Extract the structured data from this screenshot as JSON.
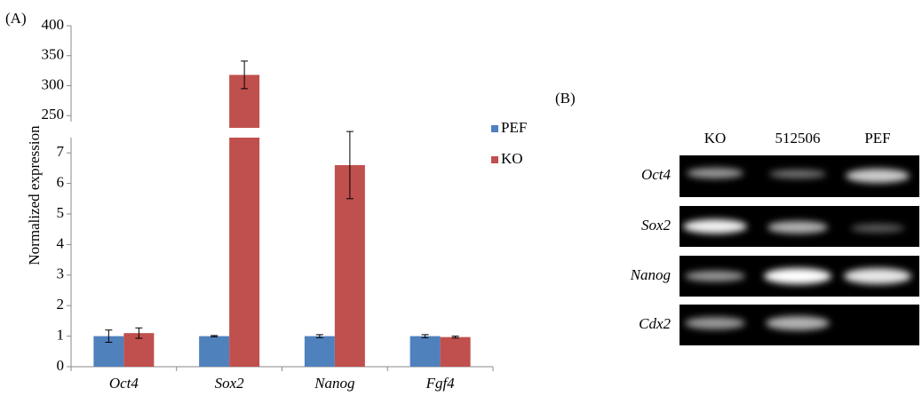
{
  "chart_data": {
    "type": "bar",
    "panel_label": "(A)",
    "y_label": "Normalized expression",
    "categories": [
      "Oct4",
      "Sox2",
      "Nanog",
      "Fgf4"
    ],
    "series": [
      {
        "name": "PEF",
        "color": "#4f81bd",
        "values": [
          1.0,
          1.0,
          1.0,
          1.0
        ],
        "errors": [
          0.2,
          0.02,
          0.05,
          0.05
        ]
      },
      {
        "name": "KO",
        "color": "#c0504d",
        "values": [
          1.1,
          318,
          6.6,
          0.97
        ],
        "errors": [
          0.17,
          23,
          1.1,
          0.03
        ]
      }
    ],
    "segments": [
      {
        "ylim": [
          0,
          7.5
        ],
        "yticks": [
          0,
          1,
          2,
          3,
          4,
          5,
          6,
          7
        ]
      },
      {
        "ylim": [
          240,
          400
        ],
        "yticks": [
          250,
          300,
          350,
          400
        ]
      }
    ],
    "legend": "right"
  },
  "gel": {
    "panel_label": "(B)",
    "lanes": [
      "KO",
      "512506",
      "PEF"
    ],
    "genes": [
      "Oct4",
      "Sox2",
      "Nanog",
      "Cdx2"
    ]
  }
}
